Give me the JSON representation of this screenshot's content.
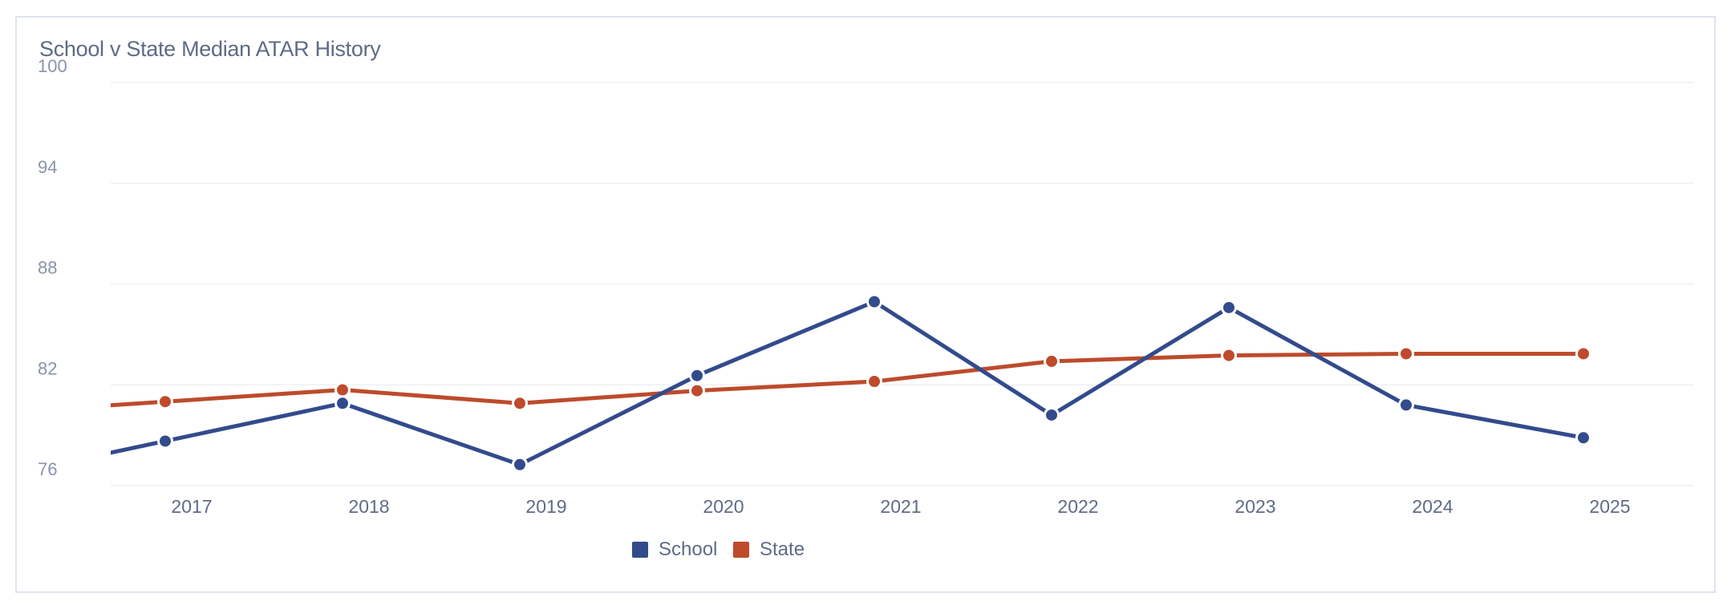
{
  "chart_data": {
    "type": "line",
    "title": "School v State Median ATAR History",
    "x": [
      "2017",
      "2018",
      "2019",
      "2020",
      "2021",
      "2022",
      "2023",
      "2024",
      "2025"
    ],
    "yticks": [
      "76",
      "82",
      "88",
      "94",
      "100"
    ],
    "ylim": [
      76,
      100
    ],
    "grid": true,
    "legend_position": "bottom-center",
    "series": [
      {
        "name": "School",
        "color": "#324b8c",
        "values": [
          78.65,
          80.9,
          77.25,
          82.55,
          86.95,
          80.2,
          86.6,
          80.8,
          78.85
        ]
      },
      {
        "name": "State",
        "color": "#bd4b2c",
        "values": [
          81.0,
          81.7,
          80.9,
          81.65,
          82.2,
          83.4,
          83.75,
          83.85,
          83.85
        ]
      }
    ]
  }
}
